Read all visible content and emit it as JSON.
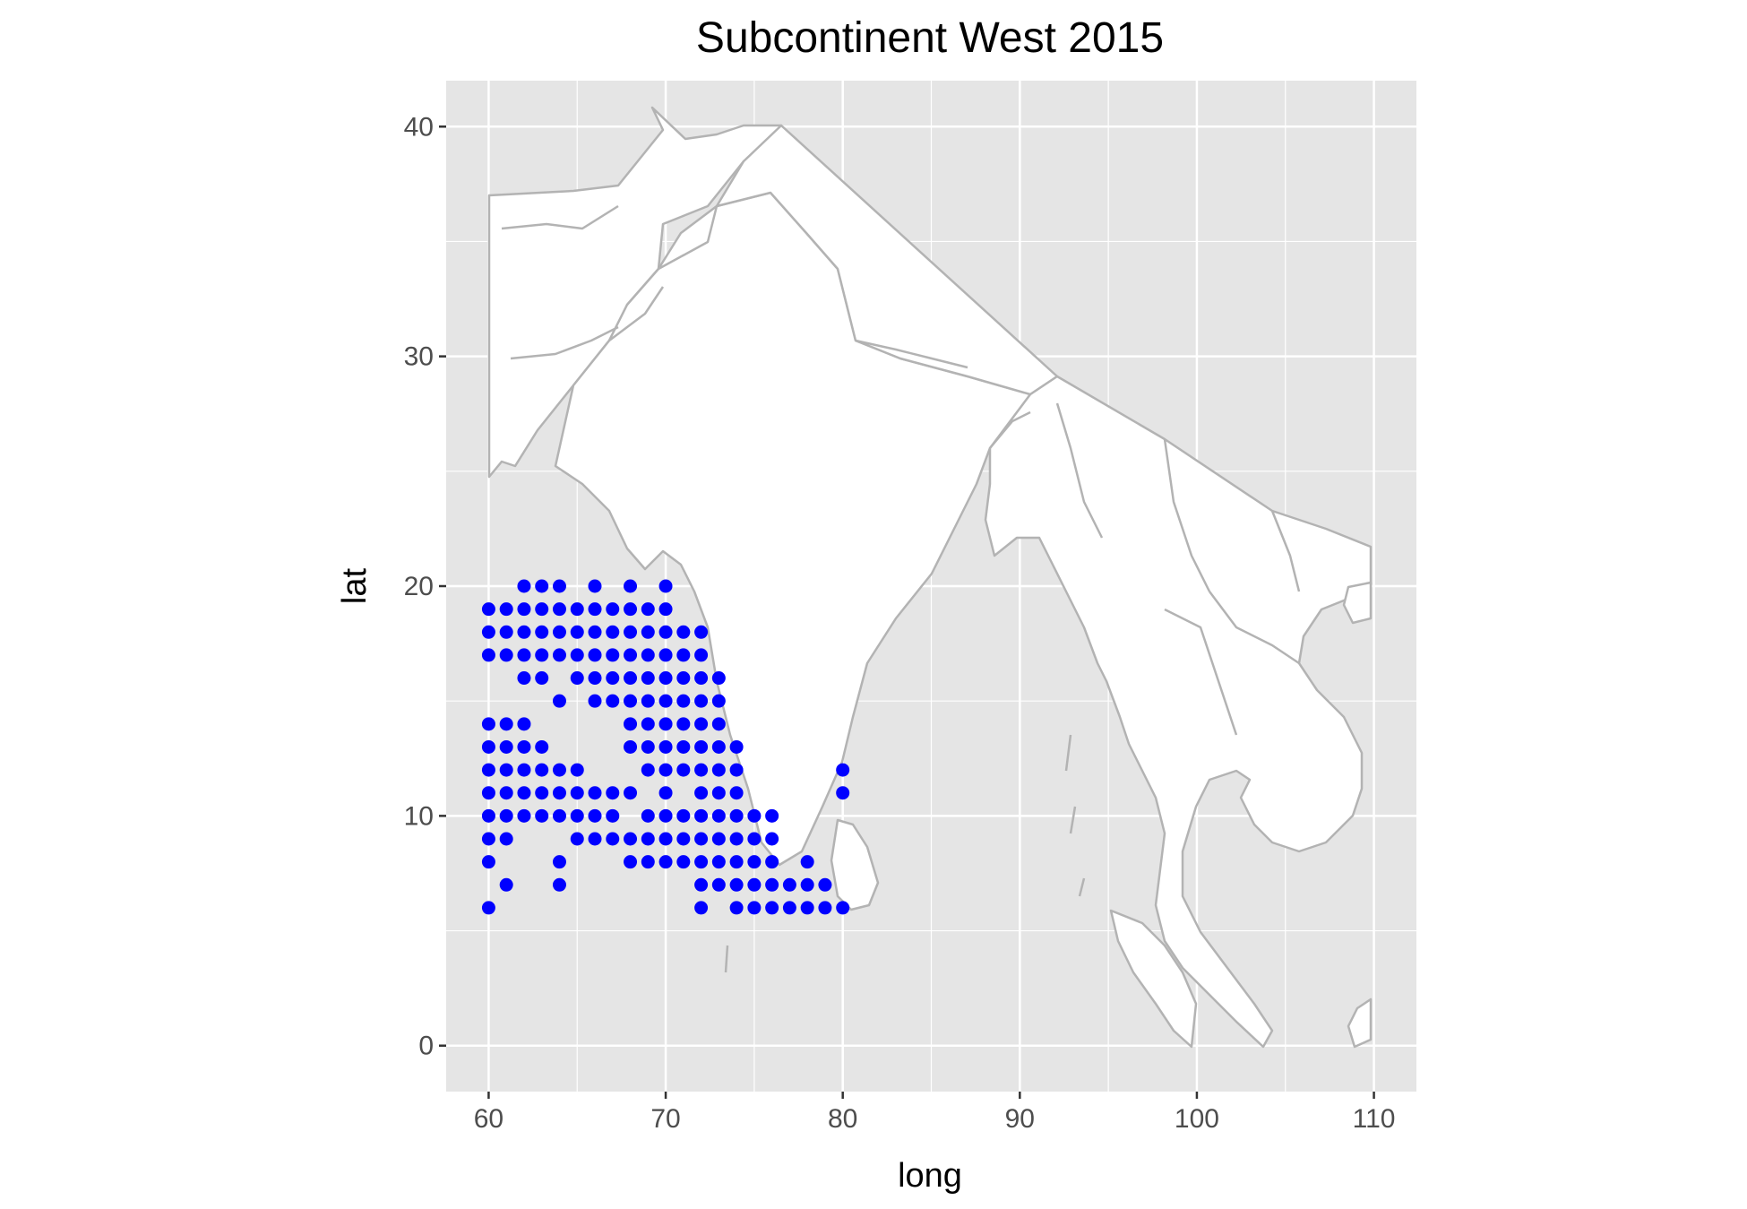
{
  "chart_data": {
    "type": "scatter",
    "title": "Subcontinent West 2015",
    "xlabel": "long",
    "ylabel": "lat",
    "xlim": [
      57.6,
      112.4
    ],
    "ylim": [
      -2,
      42
    ],
    "x_ticks": [
      60,
      70,
      80,
      90,
      100,
      110
    ],
    "y_ticks": [
      0,
      10,
      20,
      30,
      40
    ],
    "x_tick_labels": [
      "60",
      "70",
      "80",
      "90",
      "100",
      "110"
    ],
    "y_tick_labels": [
      "0",
      "10",
      "20",
      "30",
      "40"
    ],
    "grid": true,
    "colors": {
      "panel": "#e5e5e5",
      "grid": "#ffffff",
      "land_fill": "#ffffff",
      "land_outline": "#b3b3b3",
      "point": "#0000ff"
    },
    "map_region": "South and Southeast Asia country outlines",
    "points": [
      [
        62,
        20
      ],
      [
        63,
        20
      ],
      [
        64,
        20
      ],
      [
        66,
        20
      ],
      [
        68,
        20
      ],
      [
        70,
        20
      ],
      [
        60,
        19
      ],
      [
        61,
        19
      ],
      [
        62,
        19
      ],
      [
        63,
        19
      ],
      [
        64,
        19
      ],
      [
        65,
        19
      ],
      [
        66,
        19
      ],
      [
        67,
        19
      ],
      [
        68,
        19
      ],
      [
        69,
        19
      ],
      [
        70,
        19
      ],
      [
        60,
        18
      ],
      [
        61,
        18
      ],
      [
        62,
        18
      ],
      [
        63,
        18
      ],
      [
        64,
        18
      ],
      [
        65,
        18
      ],
      [
        66,
        18
      ],
      [
        67,
        18
      ],
      [
        68,
        18
      ],
      [
        69,
        18
      ],
      [
        70,
        18
      ],
      [
        71,
        18
      ],
      [
        72,
        18
      ],
      [
        60,
        17
      ],
      [
        61,
        17
      ],
      [
        62,
        17
      ],
      [
        63,
        17
      ],
      [
        64,
        17
      ],
      [
        65,
        17
      ],
      [
        66,
        17
      ],
      [
        67,
        17
      ],
      [
        68,
        17
      ],
      [
        69,
        17
      ],
      [
        70,
        17
      ],
      [
        71,
        17
      ],
      [
        72,
        17
      ],
      [
        62,
        16
      ],
      [
        63,
        16
      ],
      [
        65,
        16
      ],
      [
        66,
        16
      ],
      [
        67,
        16
      ],
      [
        68,
        16
      ],
      [
        69,
        16
      ],
      [
        70,
        16
      ],
      [
        71,
        16
      ],
      [
        72,
        16
      ],
      [
        73,
        16
      ],
      [
        64,
        15
      ],
      [
        66,
        15
      ],
      [
        67,
        15
      ],
      [
        68,
        15
      ],
      [
        69,
        15
      ],
      [
        70,
        15
      ],
      [
        71,
        15
      ],
      [
        72,
        15
      ],
      [
        73,
        15
      ],
      [
        60,
        14
      ],
      [
        61,
        14
      ],
      [
        62,
        14
      ],
      [
        68,
        14
      ],
      [
        69,
        14
      ],
      [
        70,
        14
      ],
      [
        71,
        14
      ],
      [
        72,
        14
      ],
      [
        73,
        14
      ],
      [
        60,
        13
      ],
      [
        61,
        13
      ],
      [
        62,
        13
      ],
      [
        63,
        13
      ],
      [
        68,
        13
      ],
      [
        69,
        13
      ],
      [
        70,
        13
      ],
      [
        71,
        13
      ],
      [
        72,
        13
      ],
      [
        73,
        13
      ],
      [
        74,
        13
      ],
      [
        60,
        12
      ],
      [
        61,
        12
      ],
      [
        62,
        12
      ],
      [
        63,
        12
      ],
      [
        64,
        12
      ],
      [
        65,
        12
      ],
      [
        69,
        12
      ],
      [
        70,
        12
      ],
      [
        71,
        12
      ],
      [
        72,
        12
      ],
      [
        73,
        12
      ],
      [
        74,
        12
      ],
      [
        80,
        12
      ],
      [
        60,
        11
      ],
      [
        61,
        11
      ],
      [
        62,
        11
      ],
      [
        63,
        11
      ],
      [
        64,
        11
      ],
      [
        65,
        11
      ],
      [
        66,
        11
      ],
      [
        67,
        11
      ],
      [
        68,
        11
      ],
      [
        70,
        11
      ],
      [
        72,
        11
      ],
      [
        73,
        11
      ],
      [
        74,
        11
      ],
      [
        80,
        11
      ],
      [
        60,
        10
      ],
      [
        61,
        10
      ],
      [
        62,
        10
      ],
      [
        63,
        10
      ],
      [
        64,
        10
      ],
      [
        65,
        10
      ],
      [
        66,
        10
      ],
      [
        67,
        10
      ],
      [
        69,
        10
      ],
      [
        70,
        10
      ],
      [
        71,
        10
      ],
      [
        72,
        10
      ],
      [
        73,
        10
      ],
      [
        74,
        10
      ],
      [
        75,
        10
      ],
      [
        76,
        10
      ],
      [
        60,
        9
      ],
      [
        61,
        9
      ],
      [
        65,
        9
      ],
      [
        66,
        9
      ],
      [
        67,
        9
      ],
      [
        68,
        9
      ],
      [
        69,
        9
      ],
      [
        70,
        9
      ],
      [
        71,
        9
      ],
      [
        72,
        9
      ],
      [
        73,
        9
      ],
      [
        74,
        9
      ],
      [
        75,
        9
      ],
      [
        76,
        9
      ],
      [
        60,
        8
      ],
      [
        64,
        8
      ],
      [
        68,
        8
      ],
      [
        69,
        8
      ],
      [
        70,
        8
      ],
      [
        71,
        8
      ],
      [
        72,
        8
      ],
      [
        73,
        8
      ],
      [
        74,
        8
      ],
      [
        75,
        8
      ],
      [
        76,
        8
      ],
      [
        78,
        8
      ],
      [
        61,
        7
      ],
      [
        64,
        7
      ],
      [
        72,
        7
      ],
      [
        73,
        7
      ],
      [
        74,
        7
      ],
      [
        75,
        7
      ],
      [
        76,
        7
      ],
      [
        77,
        7
      ],
      [
        78,
        7
      ],
      [
        79,
        7
      ],
      [
        60,
        6
      ],
      [
        72,
        6
      ],
      [
        74,
        6
      ],
      [
        75,
        6
      ],
      [
        76,
        6
      ],
      [
        77,
        6
      ],
      [
        78,
        6
      ],
      [
        79,
        6
      ],
      [
        80,
        6
      ]
    ]
  }
}
